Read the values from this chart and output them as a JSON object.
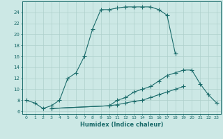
{
  "xlabel": "Humidex (Indice chaleur)",
  "background_color": "#cce8e5",
  "grid_color": "#aed0cc",
  "line_color": "#1a6b6a",
  "line1_x": [
    0,
    1,
    2,
    3,
    4,
    5,
    6,
    7,
    8,
    9,
    10,
    11,
    12,
    13,
    14,
    15,
    16,
    17,
    18
  ],
  "line1_y": [
    8.0,
    7.5,
    6.5,
    7.0,
    8.0,
    12.0,
    13.0,
    16.0,
    21.0,
    24.5,
    24.5,
    24.8,
    25.0,
    25.0,
    25.0,
    25.0,
    24.5,
    23.5,
    16.5
  ],
  "line2_x": [
    3,
    10,
    11,
    12,
    13,
    14,
    15,
    16,
    17,
    18,
    19,
    20,
    21,
    22,
    23
  ],
  "line2_y": [
    6.5,
    7.0,
    8.0,
    8.5,
    9.5,
    10.0,
    10.5,
    11.5,
    12.5,
    13.0,
    13.5,
    13.5,
    11.0,
    9.0,
    7.5
  ],
  "line3_x": [
    3,
    10,
    11,
    12,
    13,
    14,
    15,
    16,
    17,
    18,
    19
  ],
  "line3_y": [
    6.5,
    7.0,
    7.2,
    7.5,
    7.8,
    8.0,
    8.5,
    9.0,
    9.5,
    10.0,
    10.5
  ],
  "ylim": [
    5.5,
    26.0
  ],
  "xlim": [
    -0.5,
    23.5
  ],
  "yticks": [
    6,
    8,
    10,
    12,
    14,
    16,
    18,
    20,
    22,
    24
  ],
  "xticks": [
    0,
    1,
    2,
    3,
    4,
    5,
    6,
    7,
    8,
    9,
    10,
    11,
    12,
    13,
    14,
    15,
    16,
    17,
    18,
    19,
    20,
    21,
    22,
    23
  ]
}
